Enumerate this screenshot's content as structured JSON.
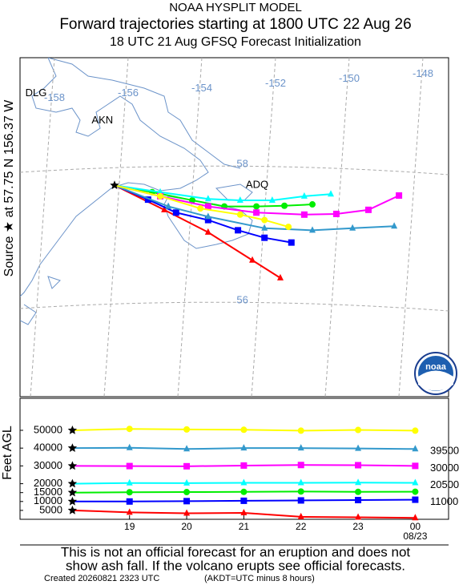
{
  "header": {
    "title_line1": "NOAA HYSPLIT MODEL",
    "title_line2": "Forward trajectories starting at 1800 UTC 22 Aug 26",
    "title_line3": "18 UTC 21 Aug    GFSQ  Forecast Initialization"
  },
  "source_label": "Source ★ at  57.75 N  156.37 W",
  "logo_text": "noaa",
  "map": {
    "source": {
      "lat": 57.75,
      "lon": -156.37
    },
    "lon_ticks": [
      -158,
      -156,
      -154,
      -152,
      -150,
      -148
    ],
    "lat_ticks": [
      58,
      56
    ],
    "places": [
      {
        "name": "DLG",
        "lat": 59.1,
        "lon": -158.5
      },
      {
        "name": "AKN",
        "lat": 58.7,
        "lon": -156.7
      },
      {
        "name": "ADQ",
        "lat": 57.75,
        "lon": -152.5
      }
    ],
    "trajectories": [
      {
        "color": "#ff0000",
        "marker": "triangle",
        "lat": [
          57.75,
          57.39,
          57.06,
          56.65,
          56.39
        ],
        "lon": [
          -156.37,
          -155.02,
          -153.83,
          -152.63,
          -151.87
        ]
      },
      {
        "color": "#0000ff",
        "marker": "square",
        "lat": [
          57.75,
          57.54,
          57.35,
          57.24,
          57.09,
          56.98,
          56.91
        ],
        "lon": [
          -156.37,
          -155.46,
          -154.7,
          -153.83,
          -153.02,
          -152.3,
          -151.57
        ]
      },
      {
        "color": "#00ee00",
        "marker": "circle",
        "lat": [
          57.75,
          57.65,
          57.53,
          57.44,
          57.44,
          57.45,
          57.47
        ],
        "lon": [
          -156.37,
          -155.35,
          -154.26,
          -153.39,
          -152.52,
          -151.76,
          -151.0
        ]
      },
      {
        "color": "#00ffff",
        "marker": "triangle",
        "lat": [
          57.75,
          57.65,
          57.55,
          57.53,
          57.53,
          57.59,
          57.62
        ],
        "lon": [
          -156.37,
          -155.13,
          -153.83,
          -152.96,
          -152.09,
          -151.22,
          -150.5
        ]
      },
      {
        "color": "#ff00ff",
        "marker": "square",
        "lat": [
          57.75,
          57.59,
          57.44,
          57.35,
          57.32,
          57.33,
          57.39,
          57.6
        ],
        "lon": [
          -156.37,
          -155.13,
          -153.83,
          -152.52,
          -151.22,
          -150.35,
          -149.48,
          -148.65
        ]
      },
      {
        "color": "#3399cc",
        "marker": "triangle",
        "lat": [
          57.75,
          57.44,
          57.29,
          57.12,
          57.09,
          57.12,
          57.15
        ],
        "lon": [
          -156.37,
          -154.91,
          -153.83,
          -152.3,
          -151.0,
          -149.91,
          -148.78
        ]
      },
      {
        "color": "#ffff00",
        "marker": "circle",
        "lat": [
          57.75,
          57.59,
          57.41,
          57.32,
          57.24,
          57.14
        ],
        "lon": [
          -156.37,
          -155.13,
          -154.04,
          -152.96,
          -152.3,
          -151.65
        ]
      }
    ]
  },
  "chart_data": {
    "type": "line",
    "ylabel": "Feet AGL",
    "x": [
      0,
      6,
      12,
      18,
      24,
      30,
      36
    ],
    "xlim": [
      -5.5,
      39.5
    ],
    "xticks": [
      {
        "value": 6,
        "label": "19"
      },
      {
        "value": 12,
        "label": "20"
      },
      {
        "value": 18,
        "label": "21"
      },
      {
        "value": 24,
        "label": "22"
      },
      {
        "value": 30,
        "label": "23"
      },
      {
        "value": 36,
        "label": "00"
      }
    ],
    "date_label": "08/23",
    "ylim": [
      0,
      68000
    ],
    "yticks": [
      5000,
      10000,
      15000,
      20000,
      30000,
      40000,
      50000
    ],
    "series": [
      {
        "color": "#ff0000",
        "marker": "triangle",
        "values": [
          5000,
          3900,
          3400,
          3600,
          1400,
          1100,
          800
        ]
      },
      {
        "color": "#0000ff",
        "marker": "square",
        "values": [
          10000,
          10000,
          10200,
          10400,
          10600,
          10800,
          11000
        ],
        "end_label": 11000
      },
      {
        "color": "#00ee00",
        "marker": "circle",
        "values": [
          15000,
          15200,
          15300,
          15400,
          15600,
          15400,
          15500
        ]
      },
      {
        "color": "#00ffff",
        "marker": "triangle",
        "values": [
          20000,
          20400,
          20300,
          20500,
          20500,
          20600,
          20500
        ],
        "end_label": 20500
      },
      {
        "color": "#ff00ff",
        "marker": "square",
        "values": [
          30000,
          29900,
          29800,
          30200,
          30500,
          30400,
          30000
        ],
        "end_label": 30000
      },
      {
        "color": "#3399cc",
        "marker": "triangle",
        "values": [
          40000,
          40200,
          39500,
          40000,
          40000,
          39800,
          39500
        ],
        "end_label": 39500
      },
      {
        "color": "#ffff00",
        "marker": "circle",
        "values": [
          50000,
          50800,
          50500,
          50300,
          49800,
          50200,
          49800
        ]
      }
    ]
  },
  "disclaimer": {
    "line1": "This is not an official forecast for an eruption and does not",
    "line2": "show ash fall. If the volcano erupts see official forecasts."
  },
  "footer": {
    "created": "Created 20260821 2323 UTC",
    "timezone": "(AKDT=UTC minus 8 hours)"
  }
}
